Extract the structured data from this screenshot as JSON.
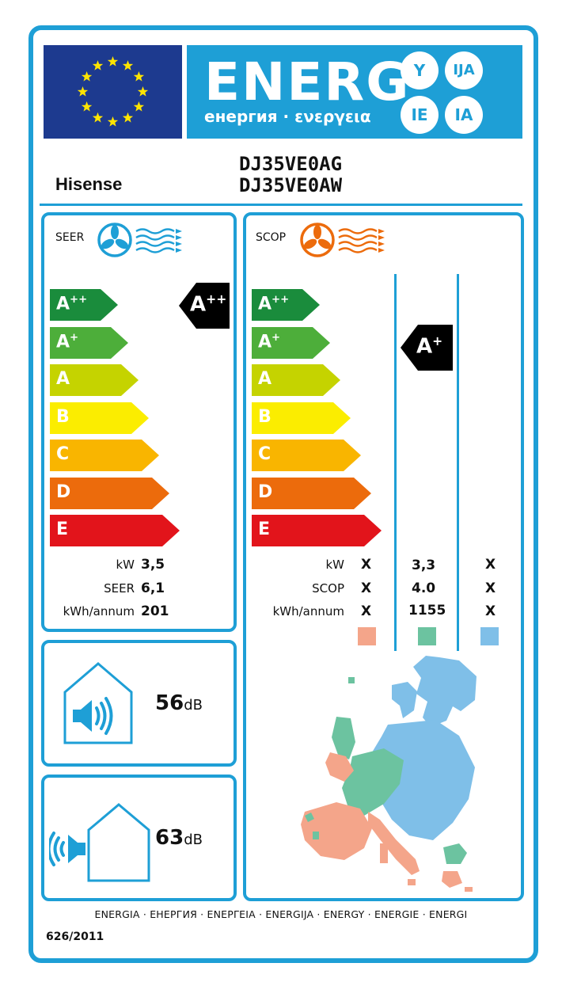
{
  "header": {
    "title": "ENERG",
    "subtitle": "енергия · ενεργεια",
    "suffixes": [
      "Y",
      "IJA",
      "IE",
      "IA"
    ],
    "brand_color": "#1e9fd6",
    "flag_color": "#1d3a8f"
  },
  "supplier": {
    "brand": "Hisense",
    "models": [
      "DJ35VE0AG",
      "DJ35VE0AW"
    ]
  },
  "cooling": {
    "label": "SEER",
    "class": "A++",
    "scale": [
      "A++",
      "A+",
      "A",
      "B",
      "C",
      "D",
      "E"
    ],
    "rows": [
      {
        "label": "kW",
        "value": "3,5"
      },
      {
        "label": "SEER",
        "value": "6,1"
      },
      {
        "label": "kWh/annum",
        "value": "201"
      }
    ]
  },
  "heating": {
    "label": "SCOP",
    "class": "A+",
    "scale": [
      "A++",
      "A+",
      "A",
      "B",
      "C",
      "D",
      "E"
    ],
    "row_labels": [
      "kW",
      "SCOP",
      "kWh/annum"
    ],
    "columns": [
      {
        "zone": "warmer",
        "color": "#f4a58a",
        "values": [
          "X",
          "X",
          "X"
        ]
      },
      {
        "zone": "average",
        "color": "#6cc3a0",
        "values": [
          "3,3",
          "4.0",
          "1155"
        ]
      },
      {
        "zone": "colder",
        "color": "#7fbfe8",
        "values": [
          "X",
          "X",
          "X"
        ]
      }
    ]
  },
  "noise": {
    "indoor": {
      "value": "56",
      "unit": "dB"
    },
    "outdoor": {
      "value": "63",
      "unit": "dB"
    }
  },
  "footer": {
    "languages": "ENERGIA · ЕНЕРГИЯ · ΕΝΕΡΓΕΙΑ · ENERGIJA · ENERGY · ENERGIE · ENERGI",
    "regulation": "626/2011"
  },
  "class_colors": [
    "#1a8c3c",
    "#4dae3a",
    "#c5d300",
    "#fbed00",
    "#f9b500",
    "#ec6b0c",
    "#e2141b"
  ]
}
